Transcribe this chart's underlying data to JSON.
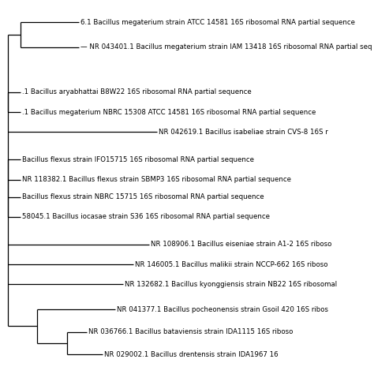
{
  "background_color": "#ffffff",
  "tree_color": "#000000",
  "font_size": 6.2,
  "text_color": "#000000",
  "taxa": [
    "6.1 Bacillus megaterium strain ATCC 14581 16S ribosomal RNA partial sequence",
    "— NR 043401.1 Bacillus megaterium strain IAM 13418 16S ribosomal RNA partial seq",
    ".1 Bacillus aryabhattai B8W22 16S ribosomal RNA partial sequence",
    ".1 Bacillus megaterium NBRC 15308 ATCC 14581 16S ribosomal RNA partial sequence",
    "NR 042619.1 Bacillus isabeliae strain CVS-8 16S r",
    "Bacillus flexus strain IFO15715 16S ribosomal RNA partial sequence",
    "NR 118382.1 Bacillus flexus strain SBMP3 16S ribosomal RNA partial sequence",
    "Bacillus flexus strain NBRC 15715 16S ribosomal RNA partial sequence",
    "58045.1 Bacillus iocasae strain S36 16S ribosomal RNA partial sequence",
    "NR 108906.1 Bacillus eiseniae strain A1-2 16S riboso",
    "NR 146005.1 Bacillus malikii strain NCCP-662 16S riboso",
    "NR 132682.1 Bacillus kyonggiensis strain NB22 16S ribosomal",
    "NR 041377.1 Bacillus pocheonensis strain Gsoil 420 16S ribos",
    "NR 036766.1 Bacillus bataviensis strain IDA1115 16S riboso",
    "NR 029002.1 Bacillus drentensis strain IDA1967 16"
  ],
  "y_positions": [
    15.0,
    14.0,
    12.2,
    11.4,
    10.6,
    9.5,
    8.7,
    8.0,
    7.2,
    6.1,
    5.3,
    4.5,
    3.5,
    2.6,
    1.7
  ],
  "tip_x": [
    2.8,
    2.8,
    0.55,
    0.55,
    5.8,
    0.55,
    0.55,
    0.55,
    0.55,
    5.5,
    4.9,
    4.5,
    4.2,
    3.1,
    3.7
  ],
  "lw": 0.9,
  "xlim": [
    -0.15,
    11.0
  ],
  "ylim": [
    1.0,
    15.8
  ]
}
